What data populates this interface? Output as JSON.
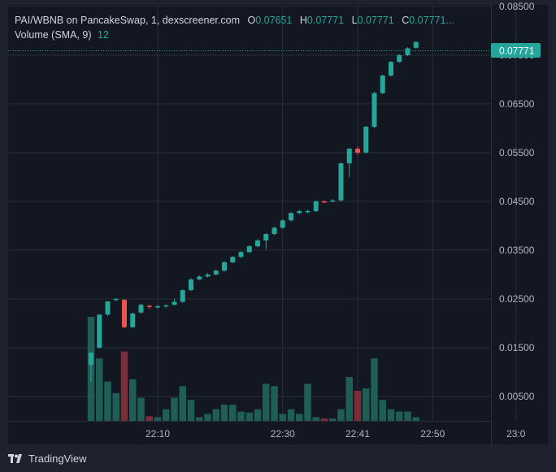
{
  "header": {
    "symbol": "PAI/WBNB on PancakeSwap, 1, dexscreener.com",
    "o_label": "O",
    "o_value": "0.07651",
    "h_label": "H",
    "h_value": "0.07771",
    "l_label": "L",
    "l_value": "0.07771",
    "c_label": "C",
    "c_value": "0.07771...",
    "volume_label": "Volume (SMA, 9)",
    "volume_value": "12"
  },
  "price_badge": "0.07771",
  "brand": "TradingView",
  "colors": {
    "up": "#26a69a",
    "down": "#ef5350",
    "up_volume": "#1f5e57",
    "down_volume": "#7a2e3a",
    "background": "#131722",
    "grid": "#2a2e39"
  },
  "chart_data": {
    "type": "candlestick",
    "y_ticks": [
      "0.08500",
      "0.07500",
      "0.06500",
      "0.05500",
      "0.04500",
      "0.03500",
      "0.02500",
      "0.01500",
      "0.00500"
    ],
    "x_ticks": [
      {
        "label": "22:10",
        "minute": 8
      },
      {
        "label": "22:30",
        "minute": 23
      },
      {
        "label": "22:41",
        "minute": 32
      },
      {
        "label": "22:50",
        "minute": 41
      },
      {
        "label": "23:0",
        "minute": 51
      }
    ],
    "ylim": [
      0.0,
      0.0853
    ],
    "candles": [
      {
        "o": 0.0115,
        "h": 0.014,
        "l": 0.008,
        "c": 0.014,
        "v": 22.5
      },
      {
        "o": 0.015,
        "h": 0.0215,
        "l": 0.0148,
        "c": 0.0218,
        "v": 13.5
      },
      {
        "o": 0.0218,
        "h": 0.0245,
        "l": 0.0215,
        "c": 0.0245,
        "v": 8.5
      },
      {
        "o": 0.0248,
        "h": 0.0252,
        "l": 0.0246,
        "c": 0.025,
        "v": 6.0
      },
      {
        "o": 0.0248,
        "h": 0.025,
        "l": 0.019,
        "c": 0.0192,
        "v": 15.0
      },
      {
        "o": 0.0192,
        "h": 0.0222,
        "l": 0.019,
        "c": 0.022,
        "v": 9.0
      },
      {
        "o": 0.0222,
        "h": 0.024,
        "l": 0.022,
        "c": 0.0238,
        "v": 5.0
      },
      {
        "o": 0.0236,
        "h": 0.0238,
        "l": 0.023,
        "c": 0.0234,
        "v": 1.0
      },
      {
        "o": 0.0234,
        "h": 0.0237,
        "l": 0.023,
        "c": 0.0235,
        "v": 0.8
      },
      {
        "o": 0.0235,
        "h": 0.0238,
        "l": 0.0232,
        "c": 0.0237,
        "v": 2.5
      },
      {
        "o": 0.0238,
        "h": 0.025,
        "l": 0.0236,
        "c": 0.0244,
        "v": 5.0
      },
      {
        "o": 0.0244,
        "h": 0.027,
        "l": 0.0242,
        "c": 0.0268,
        "v": 7.5
      },
      {
        "o": 0.0268,
        "h": 0.0292,
        "l": 0.0266,
        "c": 0.029,
        "v": 4.5
      },
      {
        "o": 0.029,
        "h": 0.0298,
        "l": 0.0288,
        "c": 0.0296,
        "v": 0.8
      },
      {
        "o": 0.0296,
        "h": 0.0303,
        "l": 0.0294,
        "c": 0.03,
        "v": 1.5
      },
      {
        "o": 0.03,
        "h": 0.031,
        "l": 0.0298,
        "c": 0.0308,
        "v": 2.5
      },
      {
        "o": 0.0308,
        "h": 0.0328,
        "l": 0.0306,
        "c": 0.0325,
        "v": 3.5
      },
      {
        "o": 0.0325,
        "h": 0.0338,
        "l": 0.0323,
        "c": 0.0336,
        "v": 3.5
      },
      {
        "o": 0.0336,
        "h": 0.0348,
        "l": 0.0334,
        "c": 0.0346,
        "v": 2.0
      },
      {
        "o": 0.0346,
        "h": 0.036,
        "l": 0.0344,
        "c": 0.0358,
        "v": 1.8
      },
      {
        "o": 0.0358,
        "h": 0.0373,
        "l": 0.0356,
        "c": 0.037,
        "v": 2.5
      },
      {
        "o": 0.037,
        "h": 0.0385,
        "l": 0.0352,
        "c": 0.0383,
        "v": 8.0
      },
      {
        "o": 0.0383,
        "h": 0.0398,
        "l": 0.0381,
        "c": 0.0396,
        "v": 7.5
      },
      {
        "o": 0.0396,
        "h": 0.0413,
        "l": 0.0394,
        "c": 0.0411,
        "v": 1.5
      },
      {
        "o": 0.0411,
        "h": 0.0428,
        "l": 0.0409,
        "c": 0.0426,
        "v": 2.5
      },
      {
        "o": 0.0426,
        "h": 0.0433,
        "l": 0.0424,
        "c": 0.043,
        "v": 1.5
      },
      {
        "o": 0.043,
        "h": 0.0433,
        "l": 0.0426,
        "c": 0.043,
        "v": 8.0
      },
      {
        "o": 0.043,
        "h": 0.0452,
        "l": 0.0428,
        "c": 0.045,
        "v": 0.8
      },
      {
        "o": 0.045,
        "h": 0.0452,
        "l": 0.0448,
        "c": 0.0449,
        "v": 0.5
      },
      {
        "o": 0.045,
        "h": 0.0455,
        "l": 0.0448,
        "c": 0.0452,
        "v": 0.5
      },
      {
        "o": 0.0452,
        "h": 0.053,
        "l": 0.045,
        "c": 0.0528,
        "v": 2.5
      },
      {
        "o": 0.0528,
        "h": 0.056,
        "l": 0.05,
        "c": 0.0558,
        "v": 9.5
      },
      {
        "o": 0.0558,
        "h": 0.0562,
        "l": 0.0545,
        "c": 0.055,
        "v": 6.5
      },
      {
        "o": 0.055,
        "h": 0.0605,
        "l": 0.0548,
        "c": 0.0603,
        "v": 7.0
      },
      {
        "o": 0.0603,
        "h": 0.0675,
        "l": 0.06,
        "c": 0.0672,
        "v": 13.5
      },
      {
        "o": 0.0672,
        "h": 0.071,
        "l": 0.067,
        "c": 0.0708,
        "v": 4.5
      },
      {
        "o": 0.0708,
        "h": 0.0738,
        "l": 0.0706,
        "c": 0.0736,
        "v": 2.5
      },
      {
        "o": 0.0736,
        "h": 0.0752,
        "l": 0.0734,
        "c": 0.075,
        "v": 2.0
      },
      {
        "o": 0.075,
        "h": 0.0766,
        "l": 0.0748,
        "c": 0.0764,
        "v": 2.0
      },
      {
        "o": 0.0765,
        "h": 0.0778,
        "l": 0.0763,
        "c": 0.0777,
        "v": 0.8
      }
    ],
    "last_price": 0.07771,
    "volume_max": 22.5,
    "grid": true
  }
}
